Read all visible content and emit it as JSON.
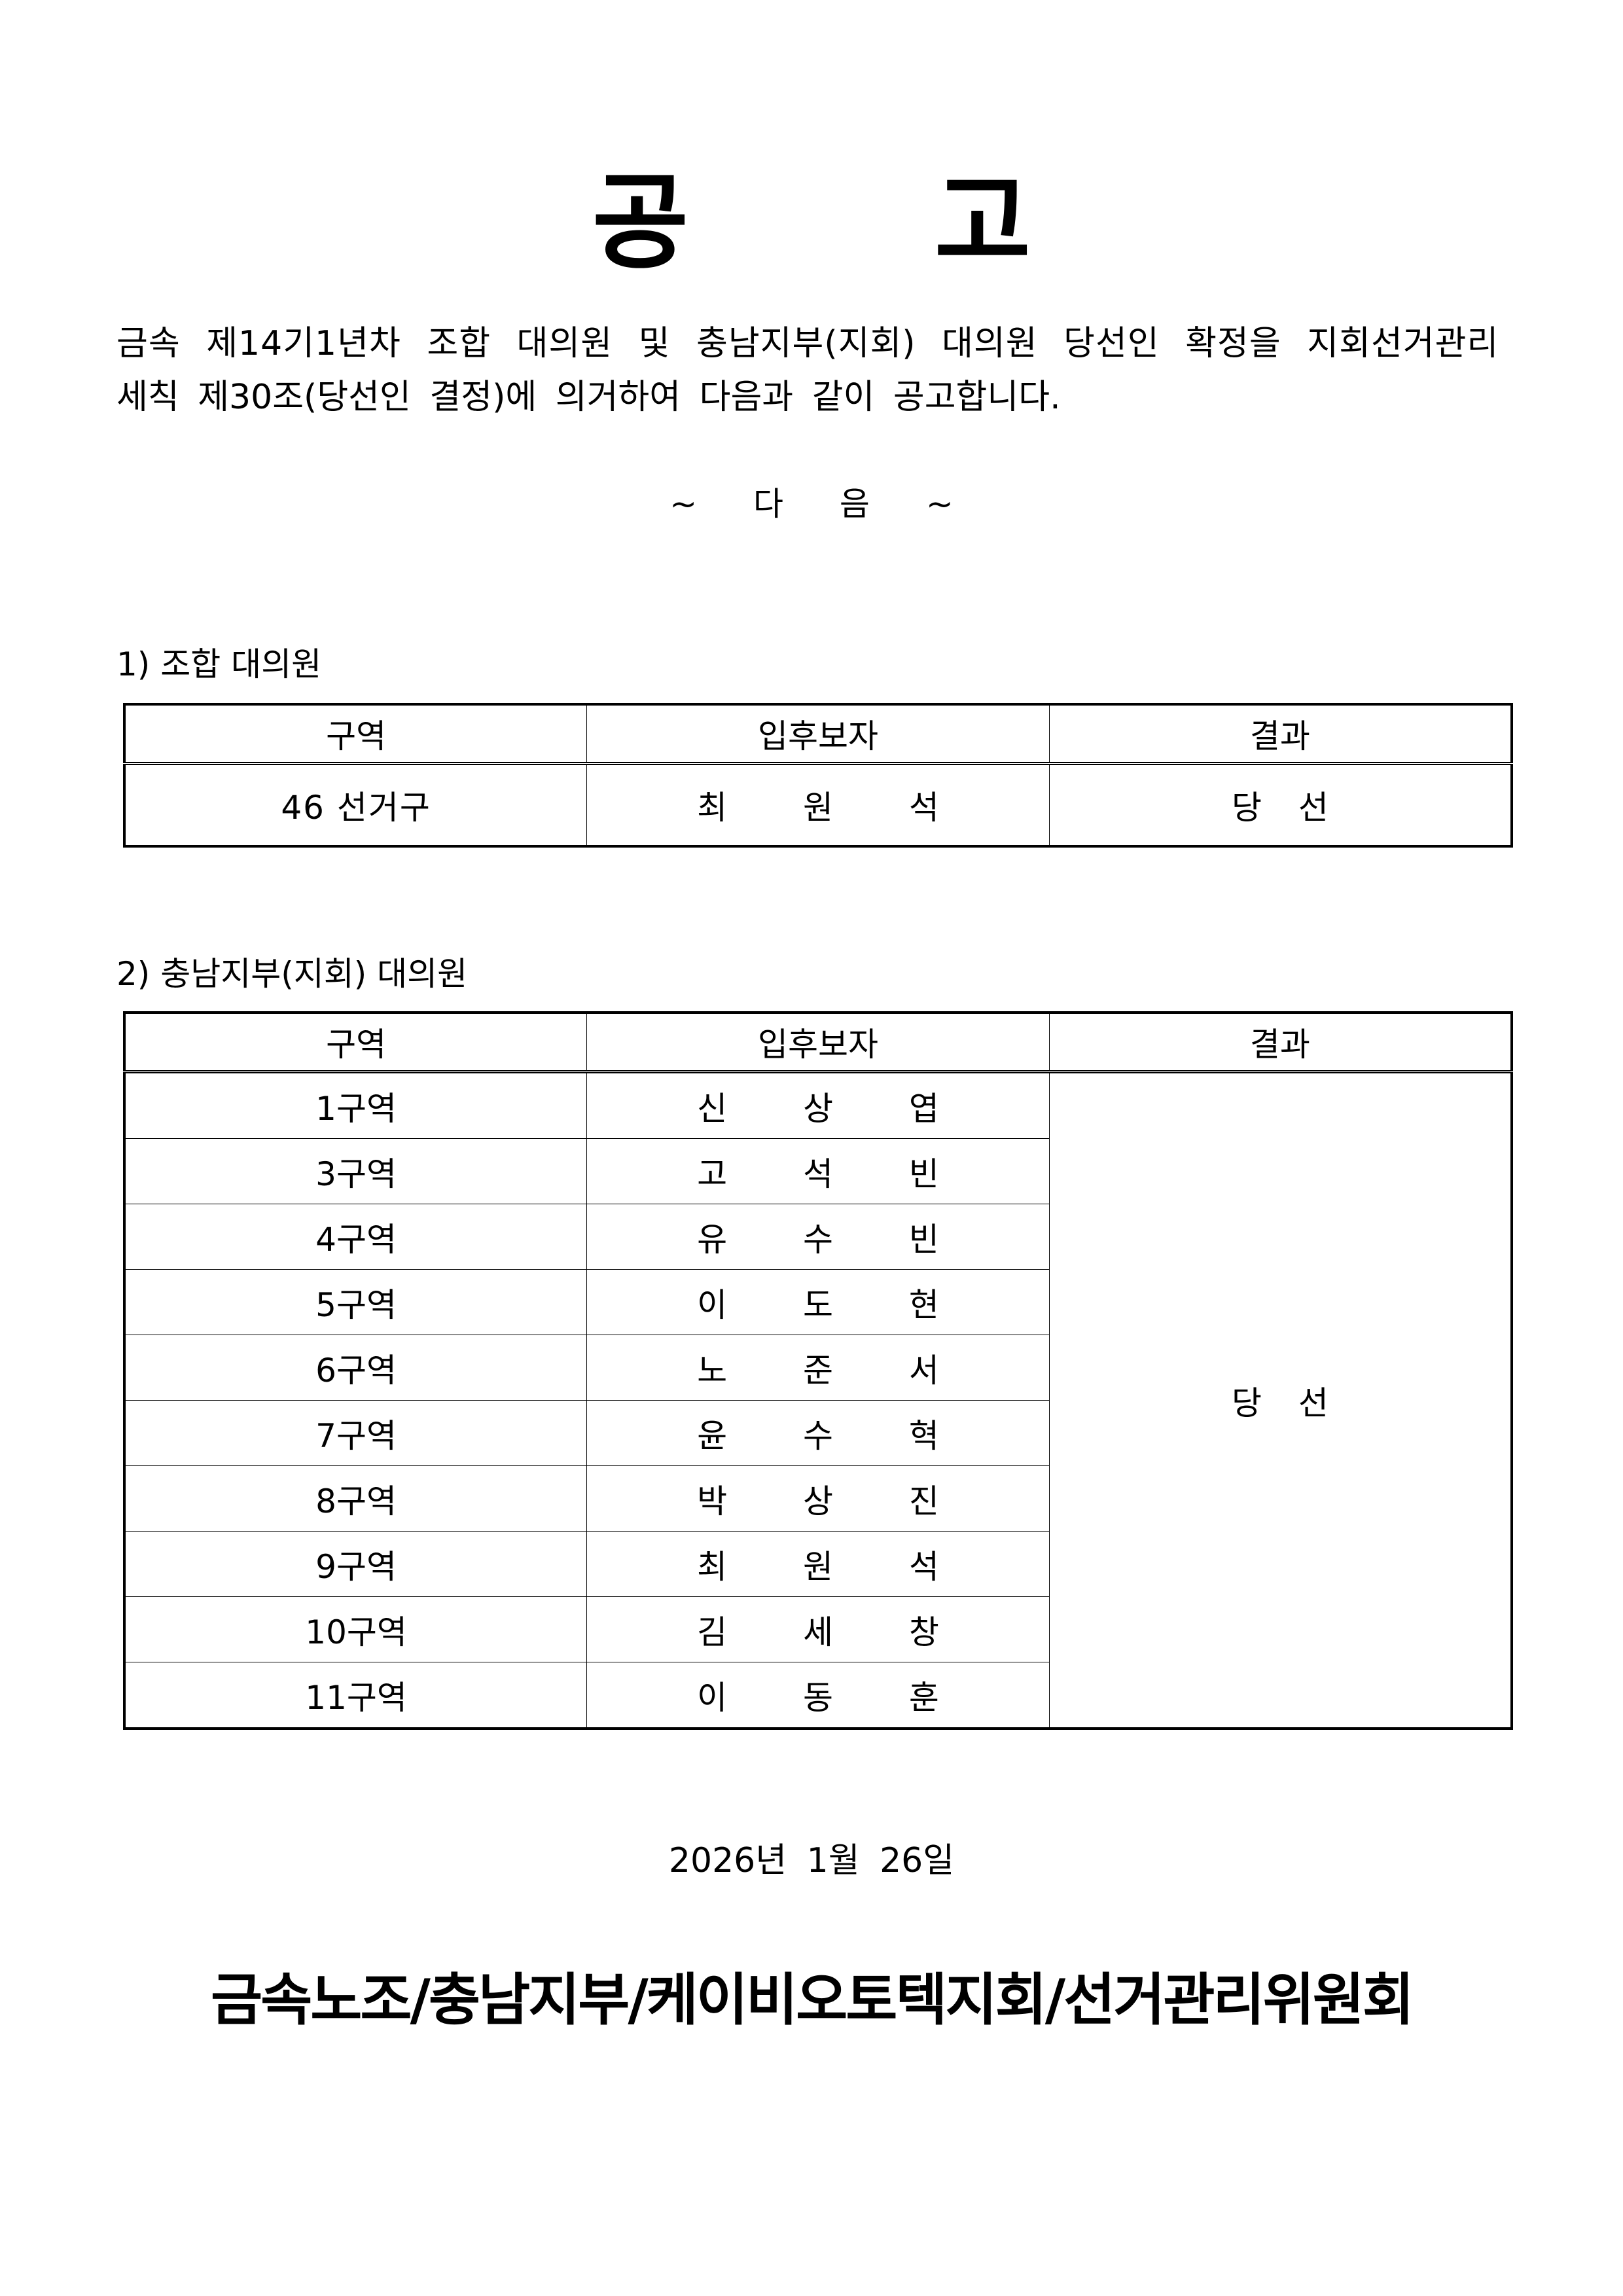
{
  "title": "공 고",
  "body": {
    "line1": "금속 제14기1년차 조합 대의원 및 충남지부(지회) 대의원 당선인 확정을 지회선거관리",
    "line2": "세칙 제30조(당선인 결정)에 의거하여 다음과 같이 공고합니다.",
    "next": "~ 다 음 ~"
  },
  "section1": {
    "heading": "1) 조합 대의원",
    "headers": [
      "구역",
      "입후보자",
      "결과"
    ],
    "rows": [
      {
        "district": "46 선거구",
        "candidate": "최 원 석",
        "result": "당 선"
      }
    ]
  },
  "section2": {
    "heading": "2) 충남지부(지회) 대의원",
    "headers": [
      "구역",
      "입후보자",
      "결과"
    ],
    "result": "당 선",
    "rows": [
      {
        "district": "1구역",
        "candidate": "신 상 엽"
      },
      {
        "district": "3구역",
        "candidate": "고 석 빈"
      },
      {
        "district": "4구역",
        "candidate": "유 수 빈"
      },
      {
        "district": "5구역",
        "candidate": "이 도 현"
      },
      {
        "district": "6구역",
        "candidate": "노 준 서"
      },
      {
        "district": "7구역",
        "candidate": "윤 수 혁"
      },
      {
        "district": "8구역",
        "candidate": "박 상 진"
      },
      {
        "district": "9구역",
        "candidate": "최 원 석"
      },
      {
        "district": "10구역",
        "candidate": "김 세 창"
      },
      {
        "district": "11구역",
        "candidate": "이 동 훈"
      }
    ]
  },
  "date": "2026년 1월 26일",
  "footer": "금속노조/충남지부/케이비오토텍지회/선거관리위원회"
}
